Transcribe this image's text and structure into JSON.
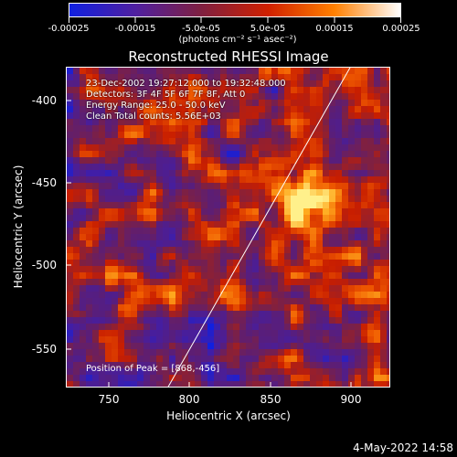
{
  "colorbar": {
    "tick_labels": [
      "-0.00025",
      "-0.00015",
      "-5.0e-05",
      "5.0e-05",
      "0.00015",
      "0.00025"
    ],
    "unit_label": "(photons cm⁻² s⁻¹ asec⁻²)",
    "colors": [
      "#1020e0",
      "#5020a0",
      "#802040",
      "#d02000",
      "#ff8000",
      "#ffffff"
    ]
  },
  "plot": {
    "title": "Reconstructed RHESSI Image",
    "xlabel": "Heliocentric X (arcsec)",
    "ylabel": "Heliocentric Y (arcsec)",
    "x_ticks": [
      "750",
      "800",
      "850",
      "900"
    ],
    "y_ticks": [
      "-400",
      "-450",
      "-500",
      "-550"
    ],
    "info_lines": [
      "23-Dec-2002 19:27:12.000 to 19:32:48.000",
      "Detectors: 3F 4F 5F 6F 7F 8F, Att 0",
      "Energy Range: 25.0 - 50.0 keV",
      "Clean    Total counts: 5.56E+03"
    ],
    "peak_label": "Position of Peak = [868,-456]"
  },
  "footer": {
    "timestamp": "4-May-2022 14:58"
  }
}
